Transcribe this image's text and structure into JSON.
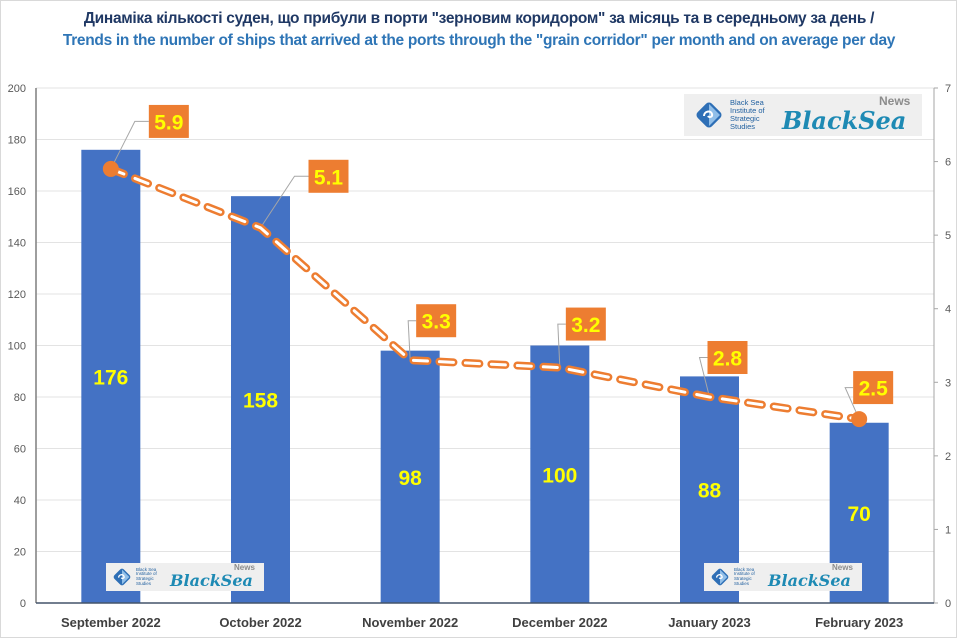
{
  "title": {
    "ua": "Динаміка кількості суден, що прибули в порти  \"зерновим коридором\" за місяць та в середньому за день",
    "separator": " / ",
    "en": "Trends in the number of ships that arrived at the ports through the \"grain corridor\" per month and on average per day"
  },
  "logo": {
    "institute": "Black Sea Institute of Strategic Studies",
    "institute_lines": [
      "Black Sea",
      "Institute of",
      "Strategic",
      "Studies"
    ],
    "brand": "BlackSea",
    "brand_sup": "News"
  },
  "colors": {
    "bar": "#4472c4",
    "line": "#ed7d31",
    "label_box": "#ed7d31",
    "label_text": "#ffff00",
    "title_ua": "#1f3864",
    "title_en": "#2e75b6"
  },
  "chart_data": {
    "type": "bar",
    "title": "Динаміка кількості суден, що прибули в порти \"зерновим коридором\" за місяць та в середньому за день / Trends in the number of ships that arrived at the ports through the \"grain corridor\" per month and on average per day",
    "categories": [
      "September 2022",
      "October 2022",
      "November 2022",
      "December 2022",
      "January 2023",
      "February 2023"
    ],
    "series": [
      {
        "name": "Ships per month",
        "type": "bar",
        "axis": "left",
        "values": [
          176,
          158,
          98,
          100,
          88,
          70
        ],
        "labels": [
          "176",
          "158",
          "98",
          "100",
          "88",
          "70"
        ]
      },
      {
        "name": "Average per day",
        "type": "line",
        "axis": "right",
        "style": "dashed",
        "values": [
          5.9,
          5.1,
          3.3,
          3.2,
          2.8,
          2.5
        ],
        "labels": [
          "5.9",
          "5.1",
          "3.3",
          "3.2",
          "2.8",
          "2.5"
        ]
      }
    ],
    "ylim": [
      0,
      200
    ],
    "yticks": [
      "0",
      "20",
      "40",
      "60",
      "80",
      "100",
      "120",
      "140",
      "160",
      "180",
      "200"
    ],
    "y2lim": [
      0,
      7
    ],
    "y2ticks": [
      "0",
      "1",
      "2",
      "3",
      "4",
      "5",
      "6",
      "7"
    ],
    "xlabel": "",
    "ylabel": "",
    "grid": true,
    "legend": "none"
  }
}
